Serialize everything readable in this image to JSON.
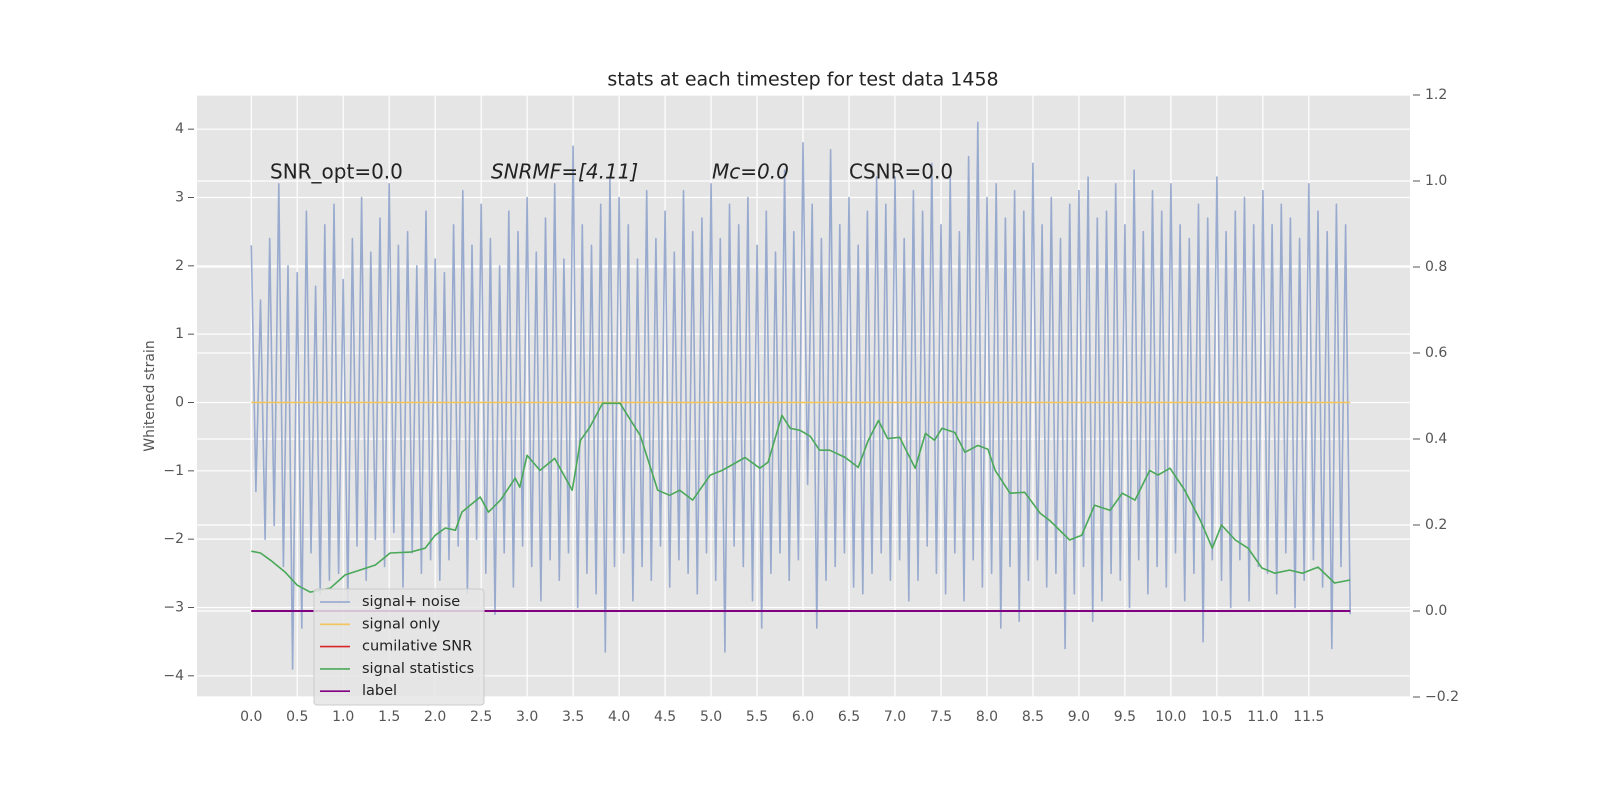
{
  "chart_data": {
    "type": "line",
    "title": "stats at each timestep for test data 1458",
    "y_label": "Whitened strain",
    "annotations": [
      "SNR_opt=0.0",
      "SNRMF=[4.11]",
      "Mc=0.0",
      "CSNR=0.0"
    ],
    "xlim": [
      -0.59,
      12.6
    ],
    "ylim": [
      -4.31,
      4.5
    ],
    "y2lim": [
      -0.2,
      1.2
    ],
    "xticks": [
      {
        "value": 0,
        "label": "0.0"
      },
      0.5,
      {
        "value": 1,
        "label": "1.0"
      },
      1.5,
      {
        "value": 2,
        "label": "2.0"
      },
      2.5,
      {
        "value": 3,
        "label": "3.0"
      },
      3.5,
      {
        "value": 4,
        "label": "4.0"
      },
      4.5,
      {
        "value": 5,
        "label": "5.0"
      },
      5.5,
      {
        "value": 6,
        "label": "6.0"
      },
      6.5,
      {
        "value": 7,
        "label": "7.0"
      },
      7.5,
      {
        "value": 8,
        "label": "8.0"
      },
      8.5,
      {
        "value": 9,
        "label": "9.0"
      },
      9.5,
      {
        "value": 10,
        "label": "10.0"
      },
      10.5,
      {
        "value": 11,
        "label": "11.0"
      },
      11.5
    ],
    "yticks": [
      {
        "value": -4,
        "label": "−4"
      },
      {
        "value": -3,
        "label": "−3"
      },
      {
        "value": -2,
        "label": "−2"
      },
      {
        "value": -1,
        "label": "−1"
      },
      0,
      1,
      2,
      3,
      4
    ],
    "y2ticks": [
      {
        "value": -0.2,
        "label": "−0.2"
      },
      {
        "value": 0,
        "label": "0.0"
      },
      0.2,
      0.4,
      0.6,
      0.8,
      {
        "value": 1,
        "label": "1.0"
      },
      1.2
    ],
    "grid": true,
    "legend": "lower left",
    "series": [
      {
        "name": "signal+ noise",
        "color": "#8fa3cb",
        "axis": "y",
        "x": [
          0,
          0.05,
          0.1,
          0.15,
          0.2,
          0.25,
          0.3,
          0.35,
          0.4,
          0.45,
          0.5,
          0.55,
          0.6,
          0.65,
          0.7,
          0.75,
          0.8,
          0.85,
          0.9,
          0.95,
          1,
          1.05,
          1.1,
          1.15,
          1.2,
          1.25,
          1.3,
          1.35,
          1.4,
          1.45,
          1.5,
          1.55,
          1.6,
          1.65,
          1.7,
          1.75,
          1.8,
          1.85,
          1.9,
          1.95,
          2,
          2.05,
          2.1,
          2.15,
          2.2,
          2.25,
          2.3,
          2.35,
          2.4,
          2.45,
          2.5,
          2.55,
          2.6,
          2.65,
          2.7,
          2.75,
          2.8,
          2.85,
          2.9,
          2.95,
          3,
          3.05,
          3.1,
          3.15,
          3.2,
          3.25,
          3.3,
          3.35,
          3.4,
          3.45,
          3.5,
          3.55,
          3.6,
          3.65,
          3.7,
          3.75,
          3.8,
          3.85,
          3.9,
          3.95,
          4,
          4.05,
          4.1,
          4.15,
          4.2,
          4.25,
          4.3,
          4.35,
          4.4,
          4.45,
          4.5,
          4.55,
          4.6,
          4.65,
          4.7,
          4.75,
          4.8,
          4.85,
          4.9,
          4.95,
          5,
          5.05,
          5.1,
          5.15,
          5.2,
          5.25,
          5.3,
          5.35,
          5.4,
          5.45,
          5.5,
          5.55,
          5.6,
          5.65,
          5.7,
          5.75,
          5.8,
          5.85,
          5.9,
          5.95,
          6,
          6.05,
          6.1,
          6.15,
          6.2,
          6.25,
          6.3,
          6.35,
          6.4,
          6.45,
          6.5,
          6.55,
          6.6,
          6.65,
          6.7,
          6.75,
          6.8,
          6.85,
          6.9,
          6.95,
          7,
          7.05,
          7.1,
          7.15,
          7.2,
          7.25,
          7.3,
          7.35,
          7.4,
          7.45,
          7.5,
          7.55,
          7.6,
          7.65,
          7.7,
          7.75,
          7.8,
          7.85,
          7.9,
          7.95,
          8,
          8.05,
          8.1,
          8.15,
          8.2,
          8.25,
          8.3,
          8.35,
          8.4,
          8.45,
          8.5,
          8.55,
          8.6,
          8.65,
          8.7,
          8.75,
          8.8,
          8.85,
          8.9,
          8.95,
          9,
          9.05,
          9.1,
          9.15,
          9.2,
          9.25,
          9.3,
          9.35,
          9.4,
          9.45,
          9.5,
          9.55,
          9.6,
          9.65,
          9.7,
          9.75,
          9.8,
          9.85,
          9.9,
          9.95,
          10,
          10.05,
          10.1,
          10.15,
          10.2,
          10.25,
          10.3,
          10.35,
          10.4,
          10.45,
          10.5,
          10.55,
          10.6,
          10.65,
          10.7,
          10.75,
          10.8,
          10.85,
          10.9,
          10.95,
          11,
          11.05,
          11.1,
          11.15,
          11.2,
          11.25,
          11.3,
          11.35,
          11.4,
          11.45,
          11.5,
          11.55,
          11.6,
          11.65,
          11.7,
          11.75,
          11.8,
          11.85,
          11.9,
          11.95
        ],
        "values": [
          2.3,
          -1.3,
          1.5,
          -2.0,
          2.4,
          -1.8,
          3.2,
          -2.4,
          2.0,
          -3.9,
          1.9,
          -3.3,
          2.8,
          -2.2,
          1.7,
          -2.8,
          2.6,
          -2.6,
          2.9,
          -2.5,
          1.8,
          -2.9,
          2.4,
          -2.1,
          3.0,
          -2.6,
          2.2,
          -2.0,
          2.7,
          -2.4,
          3.2,
          -1.9,
          2.3,
          -2.7,
          2.5,
          -2.2,
          2.0,
          -2.5,
          2.8,
          -2.3,
          2.1,
          -2.6,
          1.9,
          -2.3,
          2.6,
          -2.1,
          3.1,
          -2.8,
          2.3,
          -2.0,
          2.9,
          -2.5,
          2.4,
          -3.1,
          2.0,
          -2.2,
          2.8,
          -2.7,
          2.5,
          -2.1,
          3.0,
          -2.4,
          2.2,
          -2.9,
          2.7,
          -2.3,
          3.2,
          -2.6,
          2.1,
          -2.2,
          3.75,
          -3.0,
          2.6,
          -2.5,
          2.3,
          -2.8,
          2.9,
          -3.65,
          3.3,
          -2.4,
          3.0,
          -2.2,
          2.6,
          -2.9,
          2.1,
          -2.4,
          3.1,
          -2.6,
          2.4,
          -2.1,
          2.8,
          -2.7,
          2.2,
          -2.3,
          3.1,
          -2.5,
          2.5,
          -2.8,
          2.7,
          -2.2,
          3.2,
          -2.6,
          2.4,
          -3.65,
          2.9,
          -2.1,
          2.6,
          -2.4,
          3.0,
          -2.9,
          2.3,
          -3.3,
          2.8,
          -2.5,
          2.2,
          -2.2,
          3.4,
          -2.6,
          2.5,
          -2.3,
          3.8,
          -1.2,
          2.9,
          -3.3,
          2.4,
          -2.6,
          3.7,
          -2.4,
          2.6,
          -2.2,
          3.0,
          -2.7,
          2.3,
          -2.8,
          2.8,
          -2.5,
          3.3,
          -2.2,
          2.9,
          -2.6,
          3.3,
          -2.3,
          2.4,
          -2.9,
          3.1,
          -2.6,
          2.8,
          -2.1,
          3.5,
          -2.5,
          2.6,
          -2.8,
          3.3,
          -2.2,
          2.5,
          -2.9,
          3.6,
          -2.3,
          4.1,
          -2.7,
          3.0,
          -2.5,
          3.2,
          -3.3,
          2.7,
          -2.4,
          3.1,
          -3.2,
          2.8,
          -2.6,
          3.5,
          -2.3,
          2.6,
          -2.7,
          3.0,
          -2.5,
          2.4,
          -3.6,
          2.9,
          -2.8,
          3.1,
          -2.4,
          3.3,
          -3.2,
          2.7,
          -2.9,
          2.8,
          -2.5,
          3.2,
          -2.6,
          2.6,
          -3.0,
          3.4,
          -2.3,
          2.5,
          -2.8,
          3.1,
          -2.4,
          2.8,
          -2.7,
          3.2,
          -2.2,
          2.6,
          -2.9,
          2.4,
          -2.5,
          2.9,
          -3.5,
          2.7,
          -2.3,
          3.3,
          -2.6,
          2.5,
          -3.0,
          2.8,
          -2.3,
          3.0,
          -2.9,
          2.6,
          -2.4,
          3.1,
          -2.5,
          2.6,
          -2.8,
          2.9,
          -2.2,
          2.7,
          -3.0,
          2.4,
          -2.6,
          3.2,
          -2.3,
          2.8,
          -2.7,
          2.5,
          -3.6,
          2.9,
          -2.4,
          2.6,
          -3.1
        ]
      },
      {
        "name": "signal only",
        "color": "#f2c45a",
        "axis": "y",
        "x": [
          0,
          11.95
        ],
        "values": [
          0,
          0
        ]
      },
      {
        "name": "cumilative SNR",
        "color": "#d62728",
        "axis": "y2",
        "x": [
          0,
          11.95
        ],
        "values": [
          0,
          0
        ]
      },
      {
        "name": "signal statistics",
        "color": "#4aa858",
        "axis": "y2",
        "x": [
          0,
          0.1,
          0.21,
          0.37,
          0.5,
          0.64,
          0.86,
          1.02,
          1.18,
          1.35,
          1.51,
          1.73,
          1.89,
          2.0,
          2.11,
          2.22,
          2.29,
          2.49,
          2.58,
          2.71,
          2.87,
          2.92,
          3.0,
          3.14,
          3.3,
          3.49,
          3.58,
          3.68,
          3.82,
          4.01,
          4.23,
          4.42,
          4.55,
          4.66,
          4.8,
          4.99,
          5.12,
          5.37,
          5.53,
          5.62,
          5.77,
          5.86,
          5.97,
          6.08,
          6.18,
          6.29,
          6.46,
          6.6,
          6.71,
          6.82,
          6.92,
          7.05,
          7.22,
          7.33,
          7.43,
          7.51,
          7.65,
          7.76,
          7.9,
          8.01,
          8.09,
          8.25,
          8.41,
          8.58,
          8.68,
          8.9,
          9.03,
          9.17,
          9.34,
          9.47,
          9.61,
          9.77,
          9.86,
          9.99,
          10.15,
          10.32,
          10.45,
          10.55,
          10.7,
          10.84,
          10.99,
          11.13,
          11.29,
          11.43,
          11.6,
          11.78,
          11.95
        ],
        "values": [
          0.139,
          0.135,
          0.118,
          0.09,
          0.06,
          0.044,
          0.053,
          0.084,
          0.095,
          0.107,
          0.135,
          0.137,
          0.146,
          0.176,
          0.193,
          0.188,
          0.23,
          0.265,
          0.23,
          0.258,
          0.309,
          0.288,
          0.362,
          0.327,
          0.355,
          0.281,
          0.397,
          0.427,
          0.483,
          0.483,
          0.408,
          0.281,
          0.269,
          0.281,
          0.258,
          0.316,
          0.327,
          0.357,
          0.332,
          0.346,
          0.455,
          0.425,
          0.42,
          0.406,
          0.374,
          0.374,
          0.357,
          0.334,
          0.397,
          0.443,
          0.401,
          0.404,
          0.332,
          0.413,
          0.397,
          0.425,
          0.415,
          0.369,
          0.385,
          0.376,
          0.327,
          0.274,
          0.276,
          0.227,
          0.211,
          0.165,
          0.176,
          0.246,
          0.234,
          0.274,
          0.258,
          0.327,
          0.316,
          0.332,
          0.281,
          0.211,
          0.146,
          0.2,
          0.165,
          0.146,
          0.1,
          0.088,
          0.095,
          0.088,
          0.102,
          0.065,
          0.072
        ]
      },
      {
        "name": "label",
        "color": "#800080",
        "axis": "y2",
        "x": [
          0,
          11.95
        ],
        "values": [
          0,
          0
        ]
      }
    ]
  }
}
